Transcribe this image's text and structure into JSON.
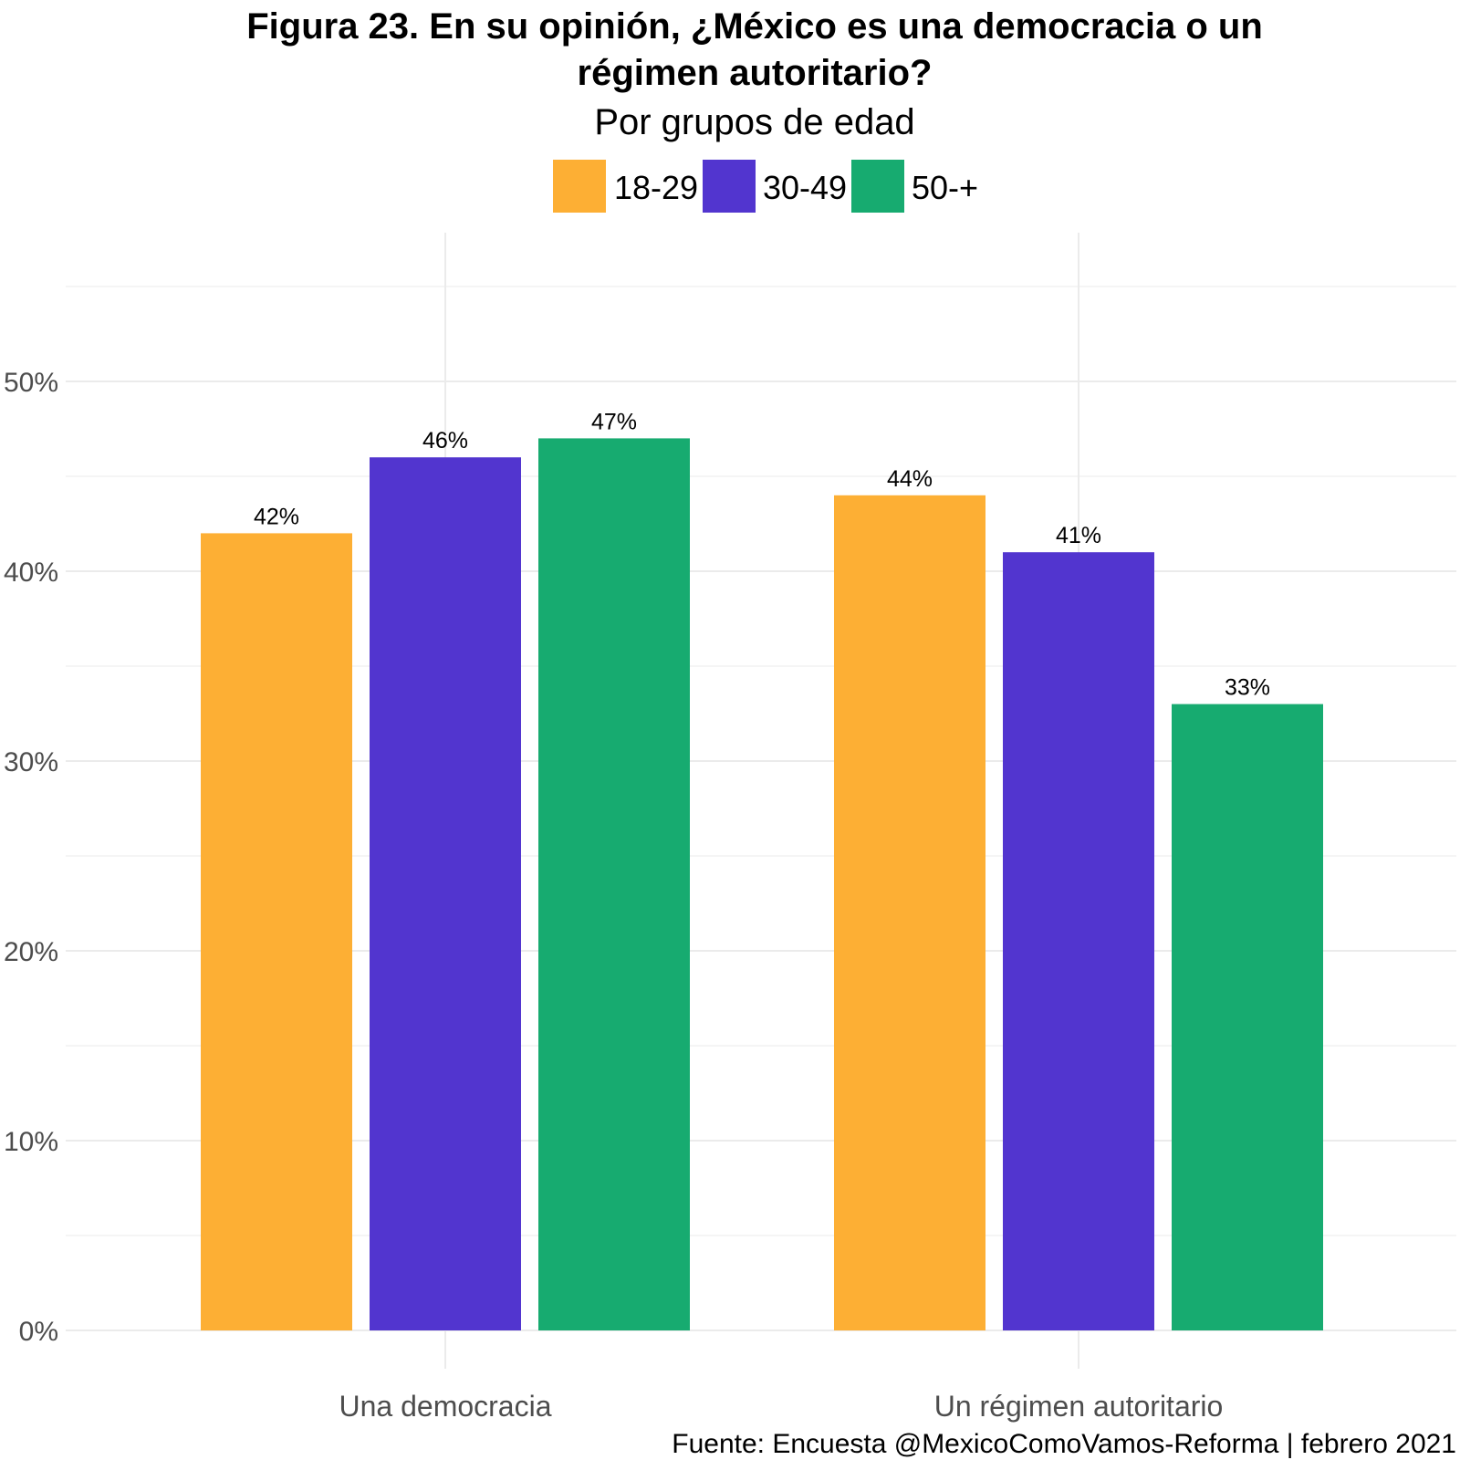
{
  "chart_data": {
    "type": "bar",
    "title_lines": [
      "Figura 23. En su opinión, ¿México es una democracia o un",
      "régimen autoritario?"
    ],
    "subtitle": "Por grupos de edad",
    "caption": "Fuente: Encuesta @MexicoComoVamos-Reforma | febrero 2021",
    "categories": [
      "Una democracia",
      "Un régimen autoritario"
    ],
    "series": [
      {
        "name": "18-29",
        "color": "#FDAF34",
        "values": [
          42,
          44
        ],
        "labels": [
          "42%",
          "44%"
        ]
      },
      {
        "name": "30-49",
        "color": "#5235CF",
        "values": [
          46,
          41
        ],
        "labels": [
          "46%",
          "41%"
        ]
      },
      {
        "name": "50-+",
        "color": "#17AB70",
        "values": [
          47,
          33
        ],
        "labels": [
          "47%",
          "33%"
        ]
      }
    ],
    "y_ticks": [
      {
        "value": 0,
        "label": "0%"
      },
      {
        "value": 10,
        "label": "10%"
      },
      {
        "value": 20,
        "label": "20%"
      },
      {
        "value": 30,
        "label": "30%"
      },
      {
        "value": 40,
        "label": "40%"
      },
      {
        "value": 50,
        "label": "50%"
      }
    ],
    "ylim": [
      0,
      55
    ],
    "legend_position": "top",
    "grid": true
  }
}
